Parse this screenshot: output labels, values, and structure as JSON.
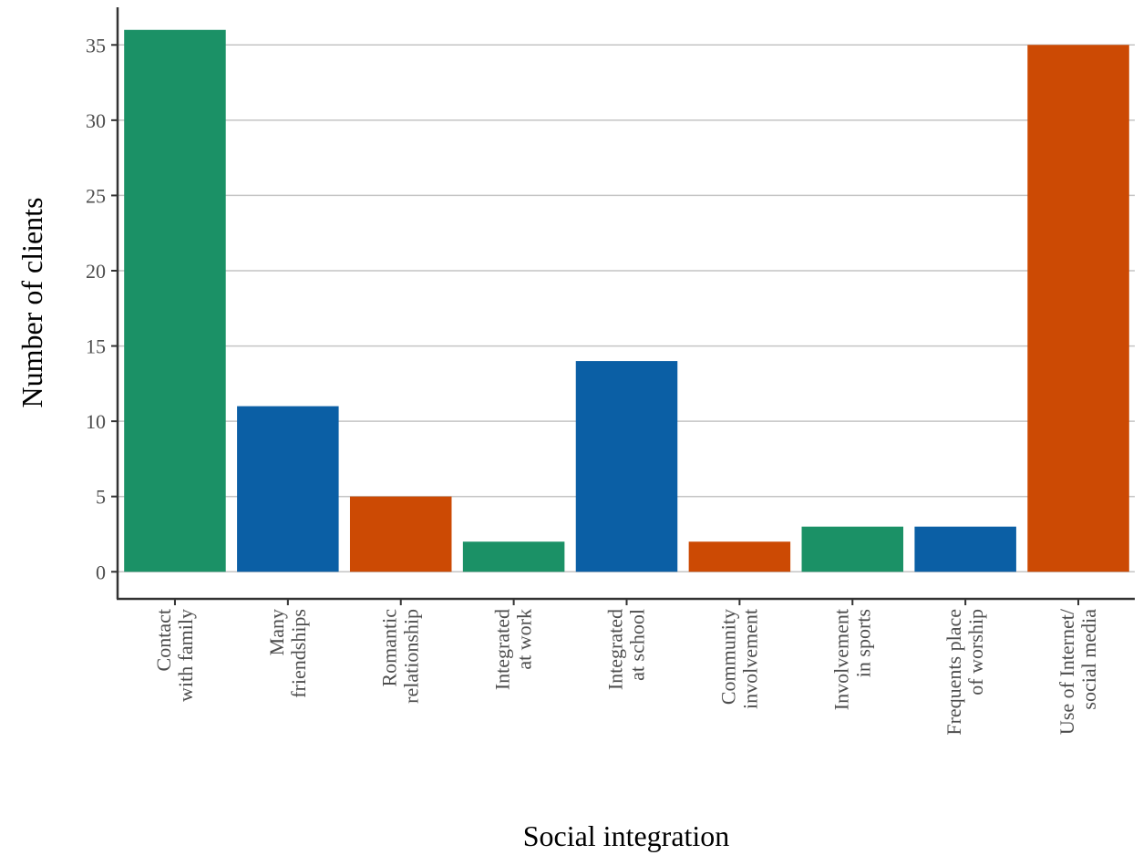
{
  "chart_data": {
    "type": "bar",
    "categories": [
      [
        "Contact",
        "with family"
      ],
      [
        "Many",
        "friendships"
      ],
      [
        "Romantic",
        "relationship"
      ],
      [
        "Integrated",
        "at work"
      ],
      [
        "Integrated",
        "at school"
      ],
      [
        "Community",
        "involvement"
      ],
      [
        "Involvement",
        "in sports"
      ],
      [
        "Frequents place",
        "of worship"
      ],
      [
        "Use of Internet/",
        "social media"
      ]
    ],
    "values": [
      36,
      11,
      5,
      2,
      14,
      2,
      3,
      3,
      35
    ],
    "colors": [
      "#1b9166",
      "#0b5fa5",
      "#cc4a04",
      "#1b9166",
      "#0b5fa5",
      "#cc4a04",
      "#1b9166",
      "#0b5fa5",
      "#cc4a04"
    ],
    "title": "",
    "xlabel": "Social integration",
    "ylabel": "Number of clients",
    "ylim": [
      -1.8,
      37.5
    ],
    "yticks": [
      0,
      5,
      10,
      15,
      20,
      25,
      30,
      35
    ],
    "grid": "horizontal",
    "legend": "none"
  }
}
